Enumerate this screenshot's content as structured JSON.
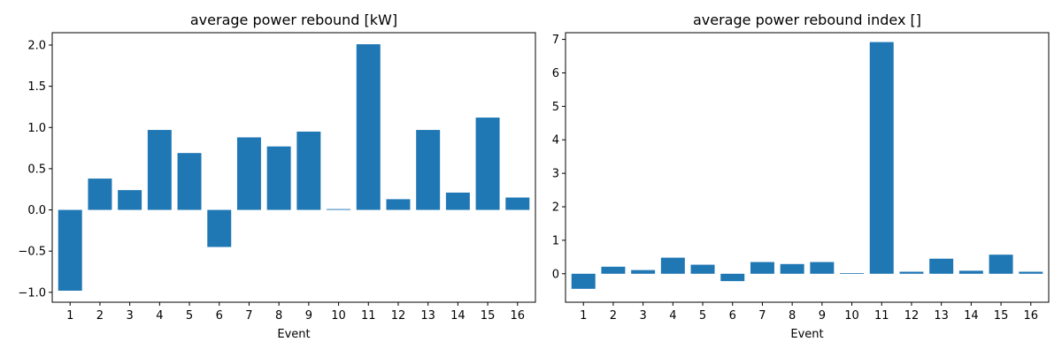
{
  "chart_data": [
    {
      "type": "bar",
      "title": "average power rebound [kW]",
      "xlabel": "Event",
      "ylabel": "",
      "categories": [
        "1",
        "2",
        "3",
        "4",
        "5",
        "6",
        "7",
        "8",
        "9",
        "10",
        "11",
        "12",
        "13",
        "14",
        "15",
        "16"
      ],
      "values": [
        -0.98,
        0.38,
        0.24,
        0.97,
        0.69,
        -0.45,
        0.88,
        0.77,
        0.95,
        0.01,
        2.01,
        0.13,
        0.97,
        0.21,
        1.12,
        0.15
      ],
      "ylim": [
        -1.12,
        2.15
      ],
      "yticks": [
        -1.0,
        -0.5,
        0.0,
        0.5,
        1.0,
        1.5,
        2.0
      ],
      "ytick_labels": [
        "−1.0",
        "−0.5",
        "0.0",
        "0.5",
        "1.0",
        "1.5",
        "2.0"
      ],
      "bar_color": "#1f77b4",
      "grid": false
    },
    {
      "type": "bar",
      "title": "average power rebound index []",
      "xlabel": "Event",
      "ylabel": "",
      "categories": [
        "1",
        "2",
        "3",
        "4",
        "5",
        "6",
        "7",
        "8",
        "9",
        "10",
        "11",
        "12",
        "13",
        "14",
        "15",
        "16"
      ],
      "values": [
        -0.45,
        0.21,
        0.11,
        0.48,
        0.27,
        -0.22,
        0.35,
        0.29,
        0.35,
        0.02,
        6.92,
        0.06,
        0.45,
        0.09,
        0.57,
        0.06
      ],
      "ylim": [
        -0.85,
        7.2
      ],
      "yticks": [
        0,
        1,
        2,
        3,
        4,
        5,
        6,
        7
      ],
      "ytick_labels": [
        "0",
        "1",
        "2",
        "3",
        "4",
        "5",
        "6",
        "7"
      ],
      "bar_color": "#1f77b4",
      "grid": false
    }
  ]
}
